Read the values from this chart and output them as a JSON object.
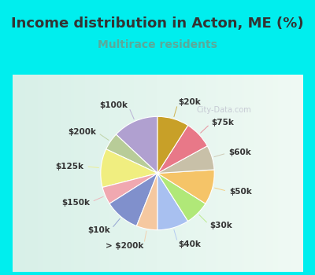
{
  "title": "Income distribution in Acton, ME (%)",
  "subtitle": "Multirace residents",
  "watermark": "City-Data.com",
  "background_outer": "#00EEEE",
  "background_inner_color": "#e8f5ee",
  "slices": [
    {
      "label": "$100k",
      "value": 13,
      "color": "#b0a0d0"
    },
    {
      "label": "$200k",
      "value": 5,
      "color": "#b8cc98"
    },
    {
      "label": "$125k",
      "value": 11,
      "color": "#f0ee80"
    },
    {
      "label": "$150k",
      "value": 5,
      "color": "#f0a8b0"
    },
    {
      "label": "$10k",
      "value": 10,
      "color": "#8090cc"
    },
    {
      "label": "> $200k",
      "value": 6,
      "color": "#f5c8a0"
    },
    {
      "label": "$40k",
      "value": 9,
      "color": "#a8c0f0"
    },
    {
      "label": "$30k",
      "value": 7,
      "color": "#b0e878"
    },
    {
      "label": "$50k",
      "value": 10,
      "color": "#f5c468"
    },
    {
      "label": "$60k",
      "value": 7,
      "color": "#c8c0a8"
    },
    {
      "label": "$75k",
      "value": 8,
      "color": "#e87888"
    },
    {
      "label": "$20k",
      "value": 9,
      "color": "#c8a028"
    }
  ],
  "label_fontsize": 7.5,
  "title_fontsize": 13,
  "subtitle_fontsize": 10,
  "title_color": "#333333",
  "subtitle_color": "#5aaa9a"
}
